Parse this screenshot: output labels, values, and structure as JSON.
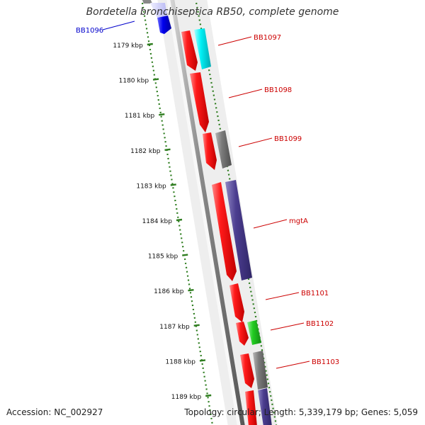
{
  "title": "Bordetella bronchiseptica RB50, complete genome",
  "footer": {
    "accession": "Accession: NC_002927",
    "info": "Topology: circular; Length: 5,339,179 bp; Genes: 5,059"
  },
  "scale_labels": [
    "1179 kbp",
    "1180 kbp",
    "1181 kbp",
    "1182 kbp",
    "1183 kbp",
    "1184 kbp",
    "1185 kbp",
    "1186 kbp",
    "1187 kbp",
    "1188 kbp",
    "1189 kbp"
  ],
  "genes": [
    {
      "name": "BB1096",
      "color": "#0000cc"
    },
    {
      "name": "BB1097",
      "color": "#cc0000"
    },
    {
      "name": "BB1098",
      "color": "#cc0000"
    },
    {
      "name": "BB1099",
      "color": "#cc0000"
    },
    {
      "name": "mgtA",
      "color": "#cc0000"
    },
    {
      "name": "BB1101",
      "color": "#cc0000"
    },
    {
      "name": "BB1102",
      "color": "#cc0000"
    },
    {
      "name": "BB1103",
      "color": "#cc0000"
    }
  ],
  "colors": {
    "cds": "#ff0000",
    "gray_feature": "#707070",
    "cyan_feature": "#00e5ee",
    "purple_feature": "#4b3d8f",
    "green_feature": "#22bb22",
    "blue_feature": "#0000ee",
    "dots": "#2e7d1f",
    "backbone": "#7a7a7a"
  }
}
